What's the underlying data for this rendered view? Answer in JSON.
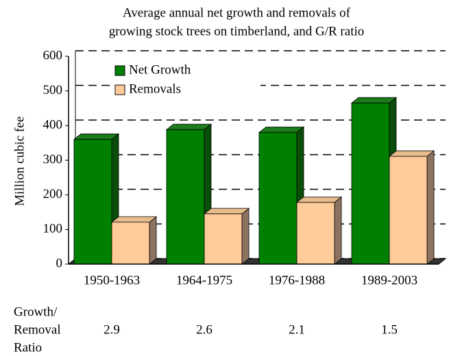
{
  "chart_data": {
    "type": "bar3d",
    "title": [
      "Average annual net growth and removals of",
      "growing stock trees on timberland, and G/R ratio"
    ],
    "y_label": "Million cubic fee",
    "categories": [
      "1950-1963",
      "1964-1975",
      "1976-1988",
      "1989-2003"
    ],
    "series": [
      {
        "name": "Net Growth",
        "color": "#008000",
        "values": [
          360,
          388,
          380,
          465
        ]
      },
      {
        "name": "Removals",
        "color": "#ffcc99",
        "values": [
          121,
          145,
          178,
          311
        ]
      }
    ],
    "ylim": [
      0,
      600
    ],
    "yticks": [
      0,
      100,
      200,
      300,
      400,
      500,
      600
    ],
    "grid": true,
    "ratio_label": [
      "Growth/",
      "Removal",
      "Ratio"
    ],
    "ratio_values": [
      2.9,
      2.6,
      2.1,
      1.5
    ]
  }
}
